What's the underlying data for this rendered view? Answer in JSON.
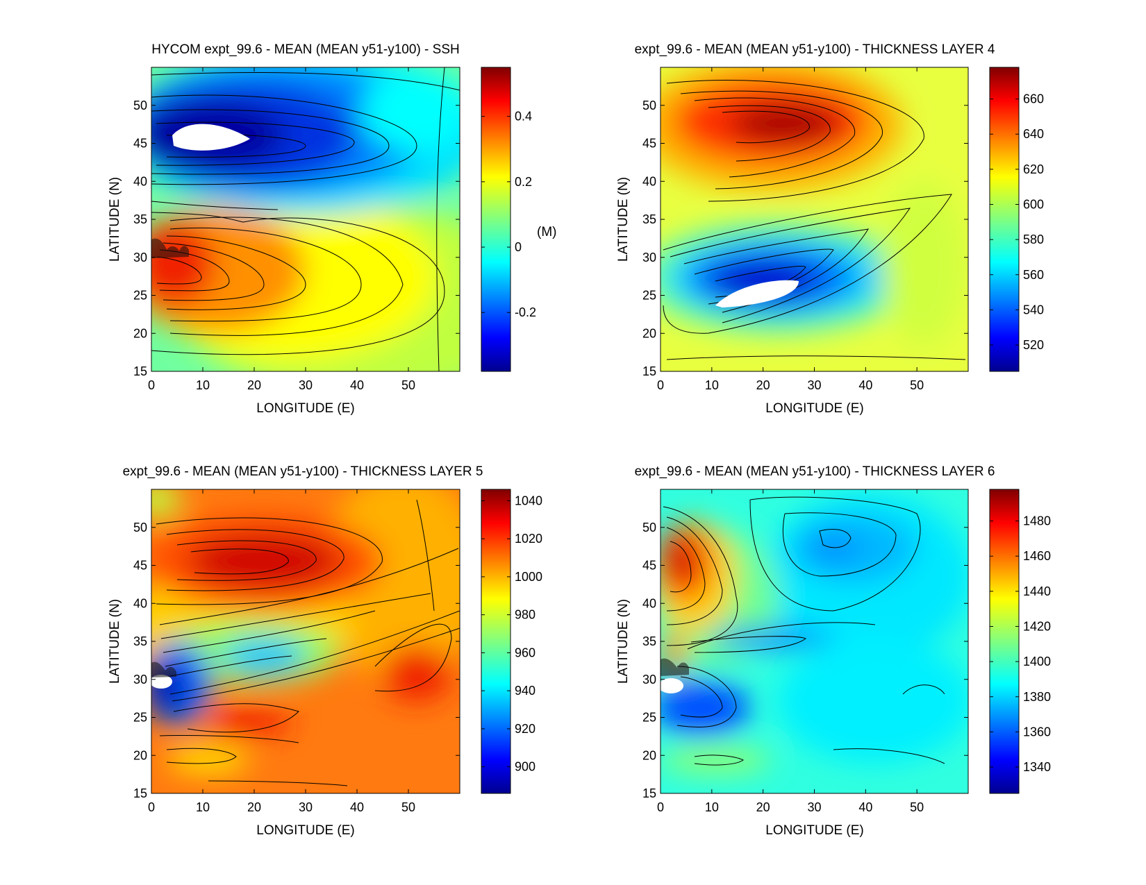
{
  "chart_data": [
    {
      "type": "heatmap",
      "title": "HYCOM expt_99.6 - MEAN (MEAN y51-y100) - SSH",
      "xlabel": "LONGITUDE (E)",
      "ylabel": "LATITUDE (N)",
      "xlim": [
        0,
        60
      ],
      "ylim": [
        15,
        55
      ],
      "xticks": [
        "0",
        "10",
        "20",
        "30",
        "40",
        "50"
      ],
      "yticks": [
        "15",
        "20",
        "25",
        "30",
        "35",
        "40",
        "45",
        "50"
      ],
      "colorbar": {
        "label": "(M)",
        "range": [
          -0.38,
          0.55
        ],
        "ticks": [
          "-0.2",
          "0",
          "0.2",
          "0.4"
        ],
        "tick_values": [
          -0.2,
          0,
          0.2,
          0.4
        ]
      },
      "features": [
        {
          "kind": "max",
          "lon": 3,
          "lat": 28,
          "value": 0.52
        },
        {
          "kind": "min",
          "lon": 10,
          "lat": 45.5,
          "value": -0.38
        },
        {
          "kind": "land",
          "lon": 10,
          "lat": 45.5
        }
      ]
    },
    {
      "type": "heatmap",
      "title": "expt_99.6 - MEAN (MEAN y51-y100) - THICKNESS LAYER 4",
      "xlabel": "LONGITUDE (E)",
      "ylabel": "LATITUDE (N)",
      "xlim": [
        0,
        60
      ],
      "ylim": [
        15,
        55
      ],
      "xticks": [
        "0",
        "10",
        "20",
        "30",
        "40",
        "50"
      ],
      "yticks": [
        "15",
        "20",
        "25",
        "30",
        "35",
        "40",
        "45",
        "50"
      ],
      "colorbar": {
        "label": "",
        "range": [
          505,
          678
        ],
        "ticks": [
          "520",
          "540",
          "560",
          "580",
          "600",
          "620",
          "640",
          "660"
        ],
        "tick_values": [
          520,
          540,
          560,
          580,
          600,
          620,
          640,
          660
        ]
      },
      "features": [
        {
          "kind": "max",
          "lon": 25,
          "lat": 47.5,
          "value": 675
        },
        {
          "kind": "min",
          "lon": 20,
          "lat": 25,
          "value": 505
        },
        {
          "kind": "land",
          "lon": 20,
          "lat": 25
        }
      ]
    },
    {
      "type": "heatmap",
      "title": "expt_99.6 - MEAN (MEAN y51-y100) - THICKNESS LAYER 5",
      "xlabel": "LONGITUDE (E)",
      "ylabel": "LATITUDE (N)",
      "xlim": [
        0,
        60
      ],
      "ylim": [
        15,
        55
      ],
      "xticks": [
        "0",
        "10",
        "20",
        "30",
        "40",
        "50"
      ],
      "yticks": [
        "15",
        "20",
        "25",
        "30",
        "35",
        "40",
        "45",
        "50"
      ],
      "colorbar": {
        "label": "",
        "range": [
          886,
          1046
        ],
        "ticks": [
          "900",
          "920",
          "940",
          "960",
          "980",
          "1000",
          "1020",
          "1040"
        ],
        "tick_values": [
          900,
          920,
          940,
          960,
          980,
          1000,
          1020,
          1040
        ]
      },
      "features": [
        {
          "kind": "max",
          "lon": 17,
          "lat": 45.5,
          "value": 1040
        },
        {
          "kind": "min",
          "lon": 2,
          "lat": 27,
          "value": 886
        },
        {
          "kind": "land",
          "lon": 2,
          "lat": 27
        }
      ]
    },
    {
      "type": "heatmap",
      "title": "expt_99.6 - MEAN (MEAN y51-y100) - THICKNESS LAYER 6",
      "xlabel": "LONGITUDE (E)",
      "ylabel": "LATITUDE (N)",
      "xlim": [
        0,
        60
      ],
      "ylim": [
        15,
        55
      ],
      "xticks": [
        "0",
        "10",
        "20",
        "30",
        "40",
        "50"
      ],
      "yticks": [
        "15",
        "20",
        "25",
        "30",
        "35",
        "40",
        "45",
        "50"
      ],
      "colorbar": {
        "label": "",
        "range": [
          1325,
          1498
        ],
        "ticks": [
          "1340",
          "1360",
          "1380",
          "1400",
          "1420",
          "1440",
          "1460",
          "1480"
        ],
        "tick_values": [
          1340,
          1360,
          1380,
          1400,
          1420,
          1440,
          1460,
          1480
        ]
      },
      "features": [
        {
          "kind": "max",
          "lon": 5,
          "lat": 44,
          "value": 1490
        },
        {
          "kind": "min",
          "lon": 3,
          "lat": 28,
          "value": 1325
        },
        {
          "kind": "land",
          "lon": 2,
          "lat": 28.5
        }
      ]
    }
  ]
}
